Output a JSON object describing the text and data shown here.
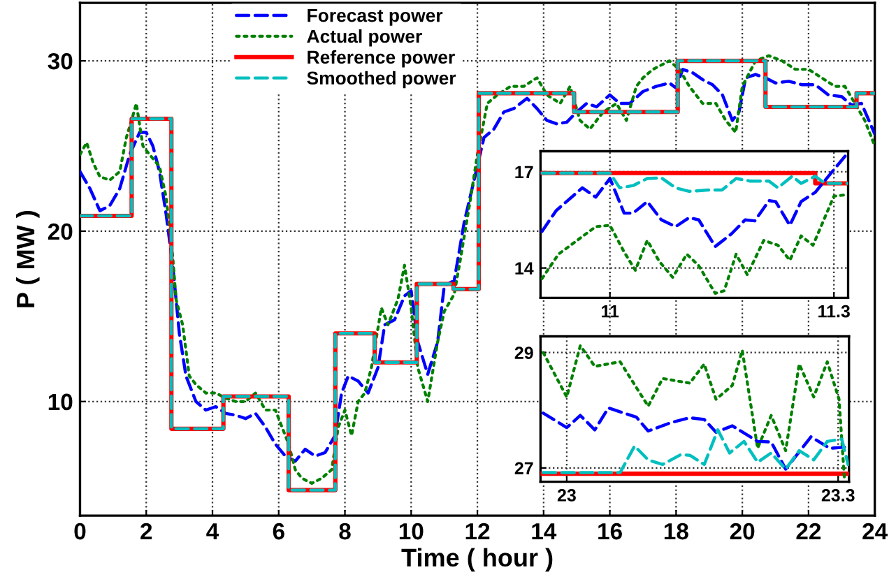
{
  "chart_data": [
    {
      "type": "line",
      "xlabel": "Time ( hour )",
      "ylabel": "P ( MW )",
      "xlim": [
        0,
        24
      ],
      "xticks": [
        0,
        2,
        4,
        6,
        8,
        10,
        12,
        14,
        16,
        18,
        20,
        22,
        24
      ],
      "ylim": [
        3.3,
        33.4
      ],
      "yticks": [
        10,
        20,
        30
      ],
      "grid": true,
      "legend": "top",
      "series": [
        {
          "name": "Forecast power",
          "color": "#0000ff",
          "line_style": "dashed",
          "x": [
            0,
            0.3,
            0.6,
            0.9,
            1.2,
            1.5,
            1.8,
            2.0,
            2.2,
            2.4,
            2.6,
            2.8,
            3.0,
            3.2,
            3.5,
            3.8,
            4.1,
            4.4,
            4.7,
            5.0,
            5.3,
            5.6,
            5.9,
            6.2,
            6.5,
            6.8,
            7.1,
            7.4,
            7.7,
            7.9,
            8.1,
            8.4,
            8.7,
            9.0,
            9.2,
            9.5,
            9.8,
            10.0,
            10.2,
            10.5,
            10.8,
            11.0,
            11.3,
            11.6,
            11.9,
            12.2,
            12.5,
            12.8,
            13.1,
            13.5,
            13.8,
            14.1,
            14.4,
            14.7,
            15.0,
            15.3,
            15.6,
            16.0,
            16.3,
            16.6,
            17.0,
            17.4,
            17.8,
            18.0,
            18.2,
            18.5,
            18.8,
            19.1,
            19.4,
            19.7,
            19.9,
            20.1,
            20.4,
            20.7,
            21.0,
            21.4,
            21.8,
            22.2,
            22.6,
            23.0,
            23.3,
            23.6,
            24.0
          ],
          "values": [
            23.5,
            22.5,
            21.2,
            21.5,
            22.5,
            24.5,
            25.8,
            25.8,
            25,
            23.5,
            21,
            18,
            14,
            11.5,
            10,
            9.5,
            9.7,
            9.3,
            9.2,
            9.0,
            9.3,
            8.5,
            7.5,
            6.8,
            6.5,
            7.2,
            6.8,
            7.0,
            8.0,
            10.5,
            11.5,
            11.2,
            10.5,
            12.0,
            14.5,
            14.8,
            16.2,
            16.5,
            13.5,
            11.6,
            13.5,
            16.8,
            17.1,
            20.5,
            23.0,
            25.5,
            26.0,
            27.0,
            27.2,
            27.8,
            27.2,
            26.5,
            26.3,
            26.4,
            27.0,
            27.5,
            27.3,
            28.0,
            27.5,
            27.5,
            28.2,
            28.5,
            28.7,
            28.4,
            29.5,
            29.3,
            28.9,
            28.6,
            28.0,
            26.5,
            27.0,
            29.0,
            29.2,
            29.0,
            28.7,
            28.8,
            28.6,
            28.6,
            28.0,
            27.9,
            27.4,
            27.5,
            25.7
          ]
        },
        {
          "name": "Actual power",
          "color": "#008000",
          "line_style": "dotted",
          "x": [
            0,
            0.2,
            0.4,
            0.6,
            0.9,
            1.2,
            1.4,
            1.6,
            1.7,
            1.9,
            2.1,
            2.4,
            2.6,
            2.8,
            2.9,
            3.1,
            3.3,
            3.5,
            3.8,
            4.1,
            4.4,
            4.7,
            5.0,
            5.3,
            5.6,
            5.9,
            6.1,
            6.3,
            6.5,
            6.7,
            7.0,
            7.3,
            7.6,
            7.8,
            8.0,
            8.2,
            8.4,
            8.6,
            8.8,
            9.1,
            9.3,
            9.6,
            9.8,
            10.0,
            10.2,
            10.5,
            10.8,
            11.0,
            11.3,
            11.5,
            11.8,
            12.0,
            12.3,
            12.6,
            13.0,
            13.4,
            13.8,
            14.1,
            14.5,
            14.8,
            15.1,
            15.4,
            15.8,
            16.2,
            16.5,
            16.8,
            17.0,
            17.3,
            17.8,
            18.1,
            18.4,
            18.8,
            19.2,
            19.5,
            19.8,
            20.0,
            20.4,
            20.8,
            21.2,
            21.6,
            22.0,
            22.4,
            22.8,
            23.1,
            23.4,
            23.7,
            24.0
          ],
          "values": [
            24.5,
            25.2,
            24,
            23.2,
            23.0,
            23.5,
            25.5,
            26.8,
            27.5,
            25,
            24.5,
            23.8,
            22,
            18.5,
            16,
            14.5,
            11.5,
            11,
            10.5,
            10.5,
            10.2,
            10,
            10.0,
            10.5,
            9.5,
            9.5,
            8.5,
            7.5,
            6.0,
            5.5,
            5.2,
            5.5,
            6.0,
            8.5,
            9.5,
            8.0,
            10.0,
            10.5,
            12.0,
            15.5,
            14.5,
            16.0,
            18.0,
            15.5,
            12.0,
            10.0,
            13.5,
            15.3,
            16.3,
            18.5,
            22.0,
            24.5,
            27.5,
            28.0,
            28.5,
            28.5,
            29.0,
            28.0,
            27.5,
            28.5,
            26.5,
            26.0,
            27.0,
            27.5,
            26.5,
            28.5,
            29.0,
            29.5,
            30.0,
            29.5,
            28.5,
            27.5,
            27.5,
            26.5,
            25.8,
            28.5,
            30.0,
            30.3,
            30.0,
            29.5,
            29.5,
            29.0,
            28.5,
            28.5,
            27.5,
            26.5,
            25.0
          ]
        },
        {
          "name": "Reference power",
          "color": "#ff0000",
          "line_style": "solid",
          "type": "step",
          "x": [
            0,
            1.56,
            2.76,
            4.33,
            6.3,
            7.71,
            8.9,
            10.17,
            11.28,
            12.04,
            14.92,
            18.05,
            20.7,
            23.45,
            24
          ],
          "values": [
            20.9,
            26.6,
            8.4,
            10.3,
            4.8,
            14.0,
            12.3,
            16.9,
            16.6,
            28.1,
            27.0,
            30.0,
            27.3,
            28.1,
            28.1
          ]
        },
        {
          "name": "Smoothed power",
          "color": "#00bfbf",
          "line_style": "dashed",
          "type": "step",
          "x": [
            0,
            1.56,
            2.76,
            4.33,
            6.3,
            7.71,
            8.9,
            10.17,
            11.28,
            12.04,
            14.92,
            18.05,
            20.7,
            23.45,
            24
          ],
          "values": [
            20.9,
            26.6,
            8.4,
            10.3,
            4.8,
            14.0,
            12.3,
            16.9,
            16.6,
            28.1,
            27.0,
            30.0,
            27.3,
            28.1,
            28.1
          ]
        }
      ]
    },
    {
      "type": "line",
      "xlim": [
        10.907,
        11.319
      ],
      "xticks": [
        11,
        11.3
      ],
      "ylim": [
        13.07,
        17.64
      ],
      "yticks": [
        14,
        17
      ],
      "grid": true,
      "series": [
        {
          "color": "#ff0000",
          "line_style": "solid",
          "type": "step",
          "x": [
            10.907,
            11.275,
            11.319
          ],
          "values": [
            16.96,
            16.64,
            16.64
          ]
        },
        {
          "color": "#0000ff",
          "line_style": "dashed",
          "x": [
            10.909,
            10.928,
            10.963,
            10.981,
            11.0,
            11.019,
            11.031,
            11.05,
            11.069,
            11.088,
            11.106,
            11.119,
            11.141,
            11.163,
            11.181,
            11.194,
            11.213,
            11.222,
            11.241,
            11.256,
            11.275,
            11.3,
            11.319
          ],
          "values": [
            15.14,
            15.79,
            16.5,
            16.21,
            16.79,
            15.71,
            15.71,
            16.07,
            15.5,
            15.29,
            15.57,
            15.5,
            14.67,
            15.07,
            15.5,
            15.47,
            16.1,
            16.07,
            15.33,
            16.07,
            16.36,
            17.07,
            17.6
          ]
        },
        {
          "color": "#008000",
          "line_style": "dotted",
          "x": [
            10.909,
            10.931,
            10.956,
            10.981,
            11.0,
            11.019,
            11.034,
            11.05,
            11.066,
            11.084,
            11.103,
            11.119,
            11.141,
            11.153,
            11.169,
            11.184,
            11.206,
            11.225,
            11.241,
            11.256,
            11.272,
            11.3,
            11.319
          ],
          "values": [
            13.67,
            14.43,
            14.86,
            15.29,
            15.33,
            14.5,
            13.93,
            14.86,
            14.21,
            13.71,
            14.43,
            14.07,
            13.21,
            13.29,
            14.43,
            13.79,
            14.86,
            14.71,
            14.24,
            15.0,
            14.71,
            16.24,
            16.29
          ]
        },
        {
          "color": "#00bfbf",
          "line_style": "dashed",
          "x": [
            10.909,
            11.0,
            11.013,
            11.031,
            11.05,
            11.069,
            11.088,
            11.106,
            11.131,
            11.15,
            11.169,
            11.188,
            11.213,
            11.225,
            11.244,
            11.256,
            11.275,
            11.288,
            11.319
          ],
          "values": [
            16.96,
            16.96,
            16.5,
            16.57,
            16.79,
            16.81,
            16.5,
            16.39,
            16.43,
            16.43,
            16.79,
            16.71,
            16.71,
            16.5,
            16.86,
            16.64,
            16.86,
            16.64,
            16.64
          ]
        }
      ]
    },
    {
      "type": "line",
      "xlim": [
        22.971,
        23.312
      ],
      "xticks": [
        23,
        23.3
      ],
      "ylim": [
        26.76,
        29.28
      ],
      "yticks": [
        27,
        29
      ],
      "grid": true,
      "series": [
        {
          "color": "#ff0000",
          "line_style": "solid",
          "type": "step",
          "x": [
            22.971,
            23.312
          ],
          "values": [
            26.9,
            26.9
          ]
        },
        {
          "color": "#008000",
          "line_style": "dotted",
          "x": [
            22.974,
            23.0,
            23.015,
            23.031,
            23.059,
            23.09,
            23.106,
            23.136,
            23.152,
            23.165,
            23.183,
            23.194,
            23.211,
            23.226,
            23.242,
            23.257,
            23.273,
            23.288,
            23.301,
            23.307
          ],
          "values": [
            29.0,
            28.23,
            29.12,
            28.76,
            28.84,
            28.07,
            28.55,
            28.47,
            28.8,
            28.19,
            28.43,
            29.04,
            27.34,
            27.91,
            27.3,
            28.8,
            28.23,
            28.84,
            28.19,
            26.8
          ]
        },
        {
          "color": "#0000ff",
          "line_style": "dashed",
          "x": [
            22.974,
            23.0,
            23.015,
            23.031,
            23.046,
            23.077,
            23.09,
            23.116,
            23.136,
            23.152,
            23.165,
            23.183,
            23.211,
            23.226,
            23.242,
            23.27,
            23.291,
            23.307
          ],
          "values": [
            27.95,
            27.7,
            27.91,
            27.66,
            28.04,
            27.88,
            27.64,
            27.79,
            27.87,
            27.84,
            27.62,
            27.73,
            27.46,
            27.45,
            26.98,
            27.54,
            27.34,
            27.36
          ]
        },
        {
          "color": "#00bfbf",
          "line_style": "dashed",
          "x": [
            22.974,
            23.059,
            23.075,
            23.09,
            23.106,
            23.126,
            23.136,
            23.152,
            23.167,
            23.18,
            23.196,
            23.211,
            23.226,
            23.242,
            23.257,
            23.273,
            23.288,
            23.304,
            23.311
          ],
          "values": [
            26.92,
            26.92,
            27.38,
            27.14,
            27.06,
            27.23,
            27.22,
            27.06,
            27.66,
            27.26,
            27.46,
            27.1,
            27.26,
            26.98,
            27.3,
            27.14,
            27.46,
            27.5,
            27.06
          ]
        }
      ]
    }
  ]
}
